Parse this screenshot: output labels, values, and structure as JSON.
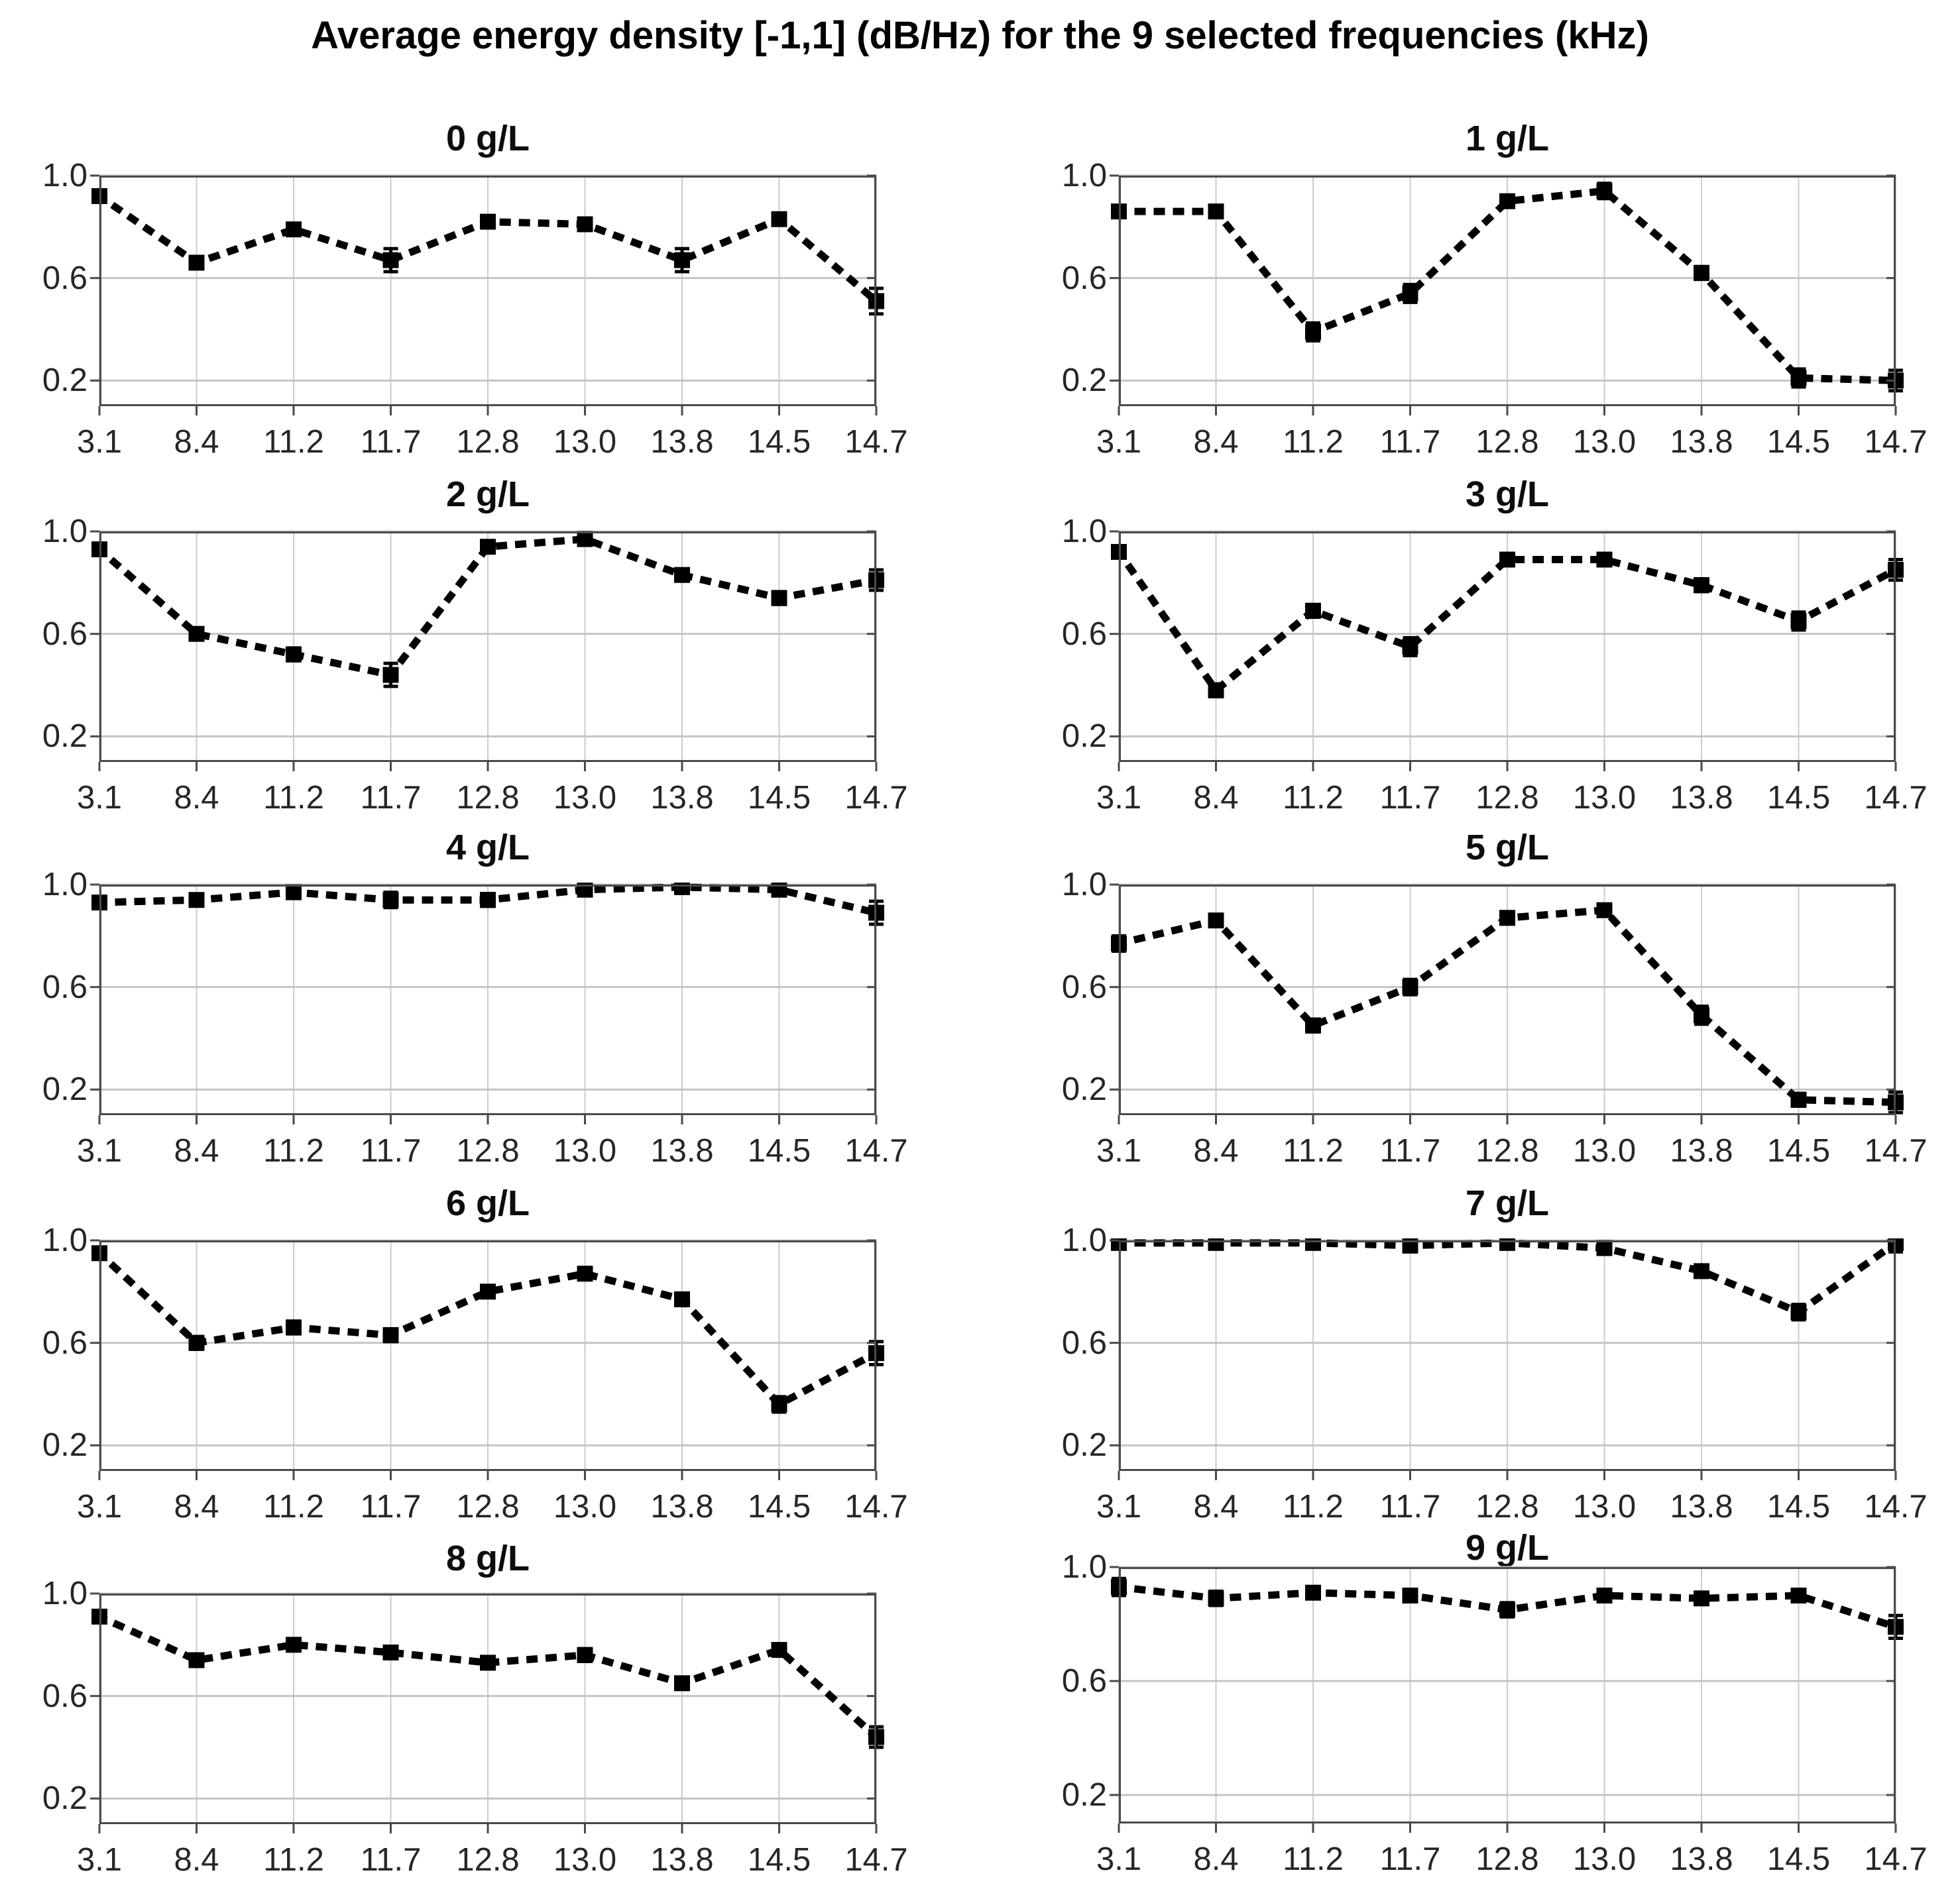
{
  "page_title": "Average energy density [-1,1] (dB/Hz) for the 9 selected frequencies (kHz)",
  "chart_data": {
    "type": "line",
    "figure_layout": "5 rows x 2 columns of subplots, one per concentration",
    "x_categories": [
      "3.1",
      "8.4",
      "11.2",
      "11.7",
      "12.8",
      "13.0",
      "13.8",
      "14.5",
      "14.7"
    ],
    "x_unit": "kHz",
    "y_ticks": [
      "1.0",
      "0.6",
      "0.2"
    ],
    "y_tick_values": [
      1.0,
      0.6,
      0.2
    ],
    "ylim": [
      0.1,
      1.0
    ],
    "grid": true,
    "legend": "none",
    "line_style": "black dotted line with filled square markers and small error bars",
    "subplots": [
      {
        "title": "0 g/L",
        "values": [
          0.92,
          0.66,
          0.79,
          0.67,
          0.82,
          0.81,
          0.67,
          0.83,
          0.51
        ],
        "errors": [
          0.015,
          0.015,
          0.015,
          0.045,
          0.015,
          0.015,
          0.045,
          0.015,
          0.05
        ]
      },
      {
        "title": "1 g/L",
        "values": [
          0.86,
          0.86,
          0.39,
          0.54,
          0.9,
          0.94,
          0.62,
          0.21,
          0.2
        ],
        "errors": [
          0.015,
          0.015,
          0.035,
          0.035,
          0.015,
          0.03,
          0.025,
          0.035,
          0.04
        ]
      },
      {
        "title": "2 g/L",
        "values": [
          0.93,
          0.6,
          0.52,
          0.44,
          0.94,
          0.97,
          0.83,
          0.74,
          0.81
        ],
        "errors": [
          0.015,
          0.015,
          0.025,
          0.045,
          0.015,
          0.015,
          0.015,
          0.025,
          0.04
        ]
      },
      {
        "title": "3 g/L",
        "values": [
          0.92,
          0.38,
          0.69,
          0.55,
          0.89,
          0.89,
          0.79,
          0.65,
          0.85
        ],
        "errors": [
          0.02,
          0.025,
          0.025,
          0.035,
          0.015,
          0.015,
          0.025,
          0.035,
          0.04
        ]
      },
      {
        "title": "4 g/L",
        "values": [
          0.93,
          0.94,
          0.97,
          0.94,
          0.94,
          0.98,
          0.99,
          0.98,
          0.89
        ],
        "errors": [
          0.015,
          0.015,
          0.015,
          0.03,
          0.025,
          0.015,
          0.015,
          0.015,
          0.045
        ]
      },
      {
        "title": "5 g/L",
        "values": [
          0.77,
          0.86,
          0.45,
          0.6,
          0.87,
          0.9,
          0.49,
          0.16,
          0.15
        ],
        "errors": [
          0.03,
          0.015,
          0.025,
          0.03,
          0.015,
          0.015,
          0.035,
          0.025,
          0.04
        ]
      },
      {
        "title": "6 g/L",
        "values": [
          0.95,
          0.6,
          0.66,
          0.63,
          0.8,
          0.87,
          0.77,
          0.36,
          0.56
        ],
        "errors": [
          0.015,
          0.025,
          0.025,
          0.025,
          0.015,
          0.015,
          0.015,
          0.03,
          0.045
        ]
      },
      {
        "title": "7 g/L",
        "values": [
          0.99,
          0.99,
          0.99,
          0.98,
          0.99,
          0.97,
          0.88,
          0.72,
          0.99
        ],
        "errors": [
          0.015,
          0.015,
          0.015,
          0.025,
          0.015,
          0.015,
          0.015,
          0.03,
          0.035
        ]
      },
      {
        "title": "8 g/L",
        "values": [
          0.91,
          0.74,
          0.8,
          0.77,
          0.73,
          0.76,
          0.65,
          0.78,
          0.44
        ],
        "errors": [
          0.015,
          0.015,
          0.015,
          0.015,
          0.015,
          0.025,
          0.015,
          0.015,
          0.04
        ]
      },
      {
        "title": "9 g/L",
        "values": [
          0.93,
          0.89,
          0.91,
          0.9,
          0.85,
          0.9,
          0.89,
          0.9,
          0.79
        ],
        "errors": [
          0.03,
          0.025,
          0.015,
          0.015,
          0.025,
          0.015,
          0.015,
          0.015,
          0.04
        ]
      }
    ]
  },
  "style": {
    "background": "#ffffff",
    "line_color": "#000000",
    "grid_color": "#cccccc",
    "axes_edge_color": "#4a4a4a",
    "tick_label_color": "#262626",
    "title_color": "#000000"
  }
}
